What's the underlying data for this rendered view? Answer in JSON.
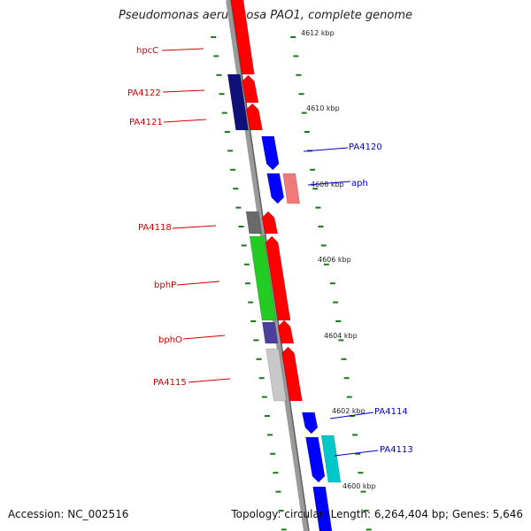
{
  "title": "Pseudomonas aeruginosa PAO1, complete genome",
  "footer": {
    "accession": "Accession: NC_002516",
    "summary": "Topology: circular; Length: 6,264,404 bp; Genes: 5,646"
  },
  "colors": {
    "backbone": "#8a8a8a",
    "tick": "#1a7a1a",
    "gene_red": "#ff0000",
    "gene_blue": "#0000ff",
    "label_red": "#cc0000",
    "label_blue": "#0000cc"
  },
  "ticks": [
    {
      "label": "4612 kbp"
    },
    {
      "label": "4610 kbp"
    },
    {
      "label": "4608 kbp"
    },
    {
      "label": "4606 kbp"
    },
    {
      "label": "4604 kbp"
    },
    {
      "label": "4602 kbp"
    },
    {
      "label": "4600 kbp"
    }
  ],
  "genes": [
    {
      "name": "hpcC",
      "strand": "reverse",
      "color": "#ff0000"
    },
    {
      "name": "PA4122",
      "strand": "reverse",
      "color": "#ff0000"
    },
    {
      "name": "PA4121",
      "strand": "reverse",
      "color": "#ff0000"
    },
    {
      "name": "PA4120",
      "strand": "forward",
      "color": "#0000ff"
    },
    {
      "name": "aph",
      "strand": "forward",
      "color": "#0000ff"
    },
    {
      "name": "PA4118",
      "strand": "reverse",
      "color": "#ff0000"
    },
    {
      "name": "bphP",
      "strand": "reverse",
      "color": "#ff0000"
    },
    {
      "name": "bphO",
      "strand": "reverse",
      "color": "#ff0000"
    },
    {
      "name": "PA4115",
      "strand": "reverse",
      "color": "#ff0000"
    },
    {
      "name": "PA4114",
      "strand": "forward",
      "color": "#0000ff"
    },
    {
      "name": "PA4113",
      "strand": "forward",
      "color": "#0000ff"
    }
  ]
}
